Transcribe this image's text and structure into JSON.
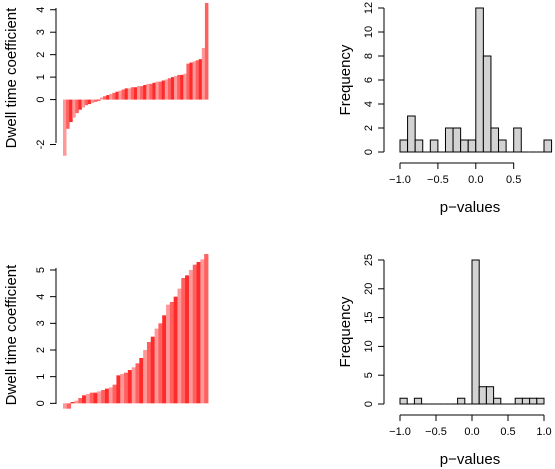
{
  "chart_data": [
    {
      "type": "bar",
      "panel": "top-left",
      "ylabel": "Dwell time coefficient",
      "yticks": [
        "4",
        "3",
        "2",
        "1",
        "0",
        "-2"
      ],
      "ylim": [
        -2.6,
        4.3
      ],
      "values": [
        -2.5,
        -1.3,
        -1.0,
        -0.8,
        -0.6,
        -0.45,
        -0.35,
        -0.25,
        -0.2,
        -0.15,
        -0.1,
        -0.05,
        0.1,
        0.15,
        0.2,
        0.25,
        0.3,
        0.35,
        0.4,
        0.45,
        0.5,
        0.5,
        0.55,
        0.55,
        0.6,
        0.6,
        0.65,
        0.7,
        0.7,
        0.75,
        0.8,
        0.8,
        0.85,
        0.9,
        0.95,
        1.0,
        1.05,
        1.1,
        1.1,
        1.15,
        1.6,
        1.65,
        1.7,
        1.75,
        1.8,
        2.3,
        4.3
      ],
      "colors": [
        "#ff9999",
        "#ff6060",
        "#ff2a2a"
      ]
    },
    {
      "type": "histogram",
      "panel": "top-right",
      "xlabel": "p−values",
      "ylabel": "Frequency",
      "xticks": [
        "−1.0",
        "−0.5",
        "0.0",
        "0.5"
      ],
      "xtick_values": [
        -1.0,
        -0.5,
        0.0,
        0.5
      ],
      "yticks": [
        "0",
        "2",
        "4",
        "6",
        "8",
        "10",
        "12"
      ],
      "ytick_values": [
        0,
        2,
        4,
        6,
        8,
        10,
        12
      ],
      "xlim": [
        -1.0,
        0.9
      ],
      "ylim": [
        0,
        12
      ],
      "bin_start": -1.0,
      "bin_width": 0.1,
      "counts": [
        1,
        3,
        1,
        0,
        1,
        0,
        2,
        2,
        1,
        1,
        12,
        8,
        2,
        1,
        0,
        2,
        0,
        0,
        0,
        1
      ],
      "bar_color": "#d3d3d3"
    },
    {
      "type": "bar",
      "panel": "bottom-left",
      "ylabel": "Dwell time coefficient",
      "yticks": [
        "0",
        "1",
        "2",
        "3",
        "4",
        "5"
      ],
      "ytick_values": [
        0,
        1,
        2,
        3,
        4,
        5
      ],
      "ylim": [
        -0.25,
        5.6
      ],
      "values": [
        -0.2,
        -0.2,
        0.05,
        0.1,
        0.2,
        0.3,
        0.35,
        0.4,
        0.4,
        0.45,
        0.5,
        0.55,
        0.6,
        0.7,
        1.05,
        1.1,
        1.15,
        1.25,
        1.35,
        1.5,
        1.7,
        2.0,
        2.3,
        2.5,
        2.8,
        3.0,
        3.3,
        3.7,
        3.8,
        4.0,
        4.3,
        4.7,
        4.8,
        5.0,
        5.2,
        5.3,
        5.4,
        5.6
      ],
      "colors": [
        "#ff9999",
        "#ff6060",
        "#ff2a2a"
      ]
    },
    {
      "type": "histogram",
      "panel": "bottom-right",
      "xlabel": "p−values",
      "ylabel": "Frequency",
      "xticks": [
        "−1.0",
        "−0.5",
        "0.0",
        "0.5",
        "1.0"
      ],
      "xtick_values": [
        -1.0,
        -0.5,
        0.0,
        0.5,
        1.0
      ],
      "yticks": [
        "0",
        "5",
        "10",
        "15",
        "20",
        "25"
      ],
      "ytick_values": [
        0,
        5,
        10,
        15,
        20,
        25
      ],
      "xlim": [
        -1.0,
        1.0
      ],
      "ylim": [
        0,
        25
      ],
      "bin_start": -1.0,
      "bin_width": 0.1,
      "counts": [
        1,
        0,
        1,
        0,
        0,
        0,
        0,
        0,
        1,
        0,
        25,
        3,
        3,
        1,
        0,
        0,
        1,
        1,
        1,
        1
      ],
      "bar_color": "#d3d3d3"
    }
  ]
}
